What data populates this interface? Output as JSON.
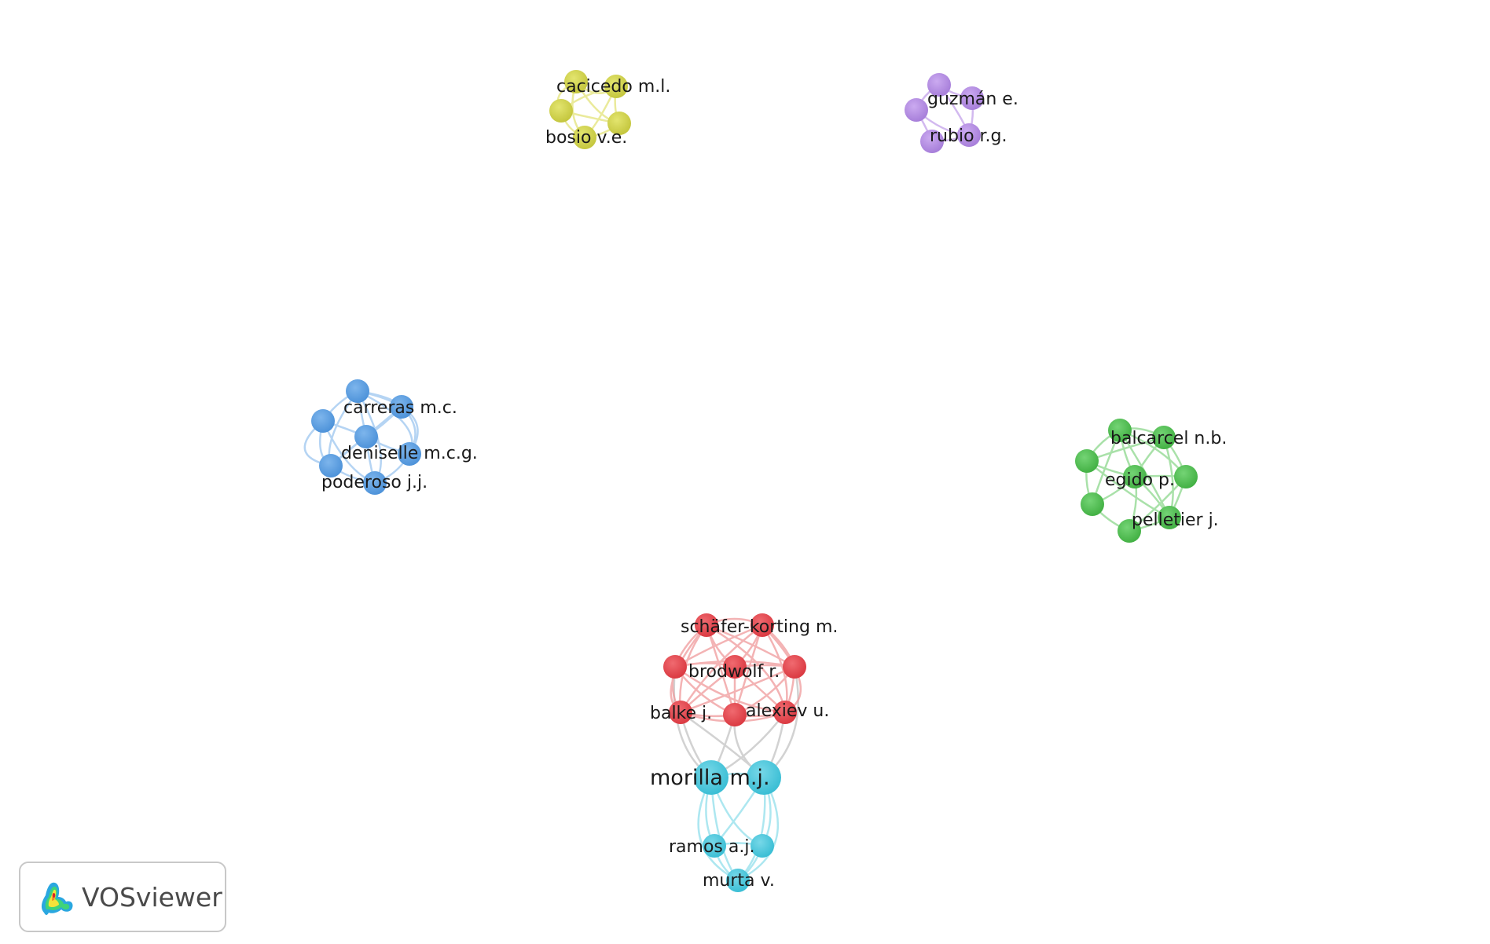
{
  "app": {
    "logo_text": "VOSviewer"
  },
  "colors": {
    "yellow": "#cdcf4a",
    "purple": "#b48de0",
    "blue": "#5a9ee0",
    "green": "#52c153",
    "red": "#e6484f",
    "cyan": "#4cc9de"
  },
  "labels": {
    "cacicedo": "cacicedo m.l.",
    "bosio": "bosio v.e.",
    "guzman": "guzmán e.",
    "rubio": "rubio r.g.",
    "carreras": "carreras m.c.",
    "deniselle": "deniselle m.c.g.",
    "poderoso": "poderoso j.j.",
    "balcarcel": "balcarcel n.b.",
    "egido": "egido p.",
    "pelletier": "pelletier j.",
    "schafer": "schäfer-korting m.",
    "brodwolf": "brodwolf r.",
    "balke": "balke j.",
    "alexiev": "alexiev u.",
    "morilla": "morilla m.j.",
    "ramos": "ramos a.j.",
    "murta": "murta v."
  }
}
